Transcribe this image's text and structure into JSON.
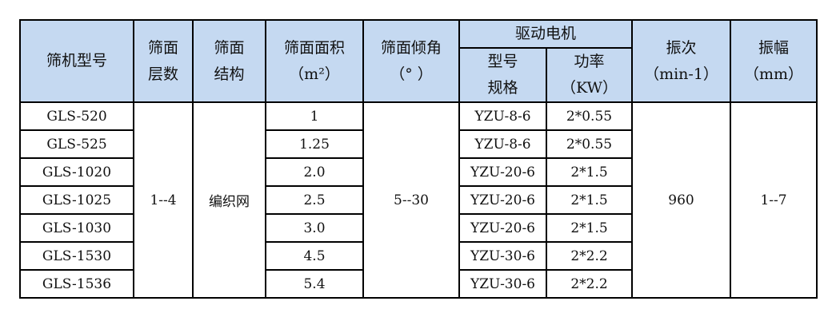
{
  "header": {
    "model": "筛机型号",
    "layers": [
      "筛面",
      "层数"
    ],
    "structure": [
      "筛面",
      "结构"
    ],
    "area": [
      "筛面面积",
      "（m²）"
    ],
    "angle": [
      "筛面倾角",
      "（° ）"
    ],
    "motor": "驱动电机",
    "motor_model": [
      "型号",
      "规格"
    ],
    "motor_power": [
      "功率",
      "（KW）"
    ],
    "frequency": [
      "振次",
      "（min-1）"
    ],
    "amplitude": [
      "振幅",
      "（mm）"
    ]
  },
  "shared": {
    "layers": "1--4",
    "structure": "编织网",
    "angle": "5--30",
    "frequency": "960",
    "amplitude": "1--7"
  },
  "rows": [
    {
      "model": "GLS-520",
      "area": "1",
      "motor_model": "YZU-8-6",
      "power": "2*0.55"
    },
    {
      "model": "GLS-525",
      "area": "1.25",
      "motor_model": "YZU-8-6",
      "power": "2*0.55"
    },
    {
      "model": "GLS-1020",
      "area": "2.0",
      "motor_model": "YZU-20-6",
      "power": "2*1.5"
    },
    {
      "model": "GLS-1025",
      "area": "2.5",
      "motor_model": "YZU-20-6",
      "power": "2*1.5"
    },
    {
      "model": "GLS-1030",
      "area": "3.0",
      "motor_model": "YZU-20-6",
      "power": "2*1.5"
    },
    {
      "model": "GLS-1530",
      "area": "4.5",
      "motor_model": "YZU-30-6",
      "power": "2*2.2"
    },
    {
      "model": "GLS-1536",
      "area": "5.4",
      "motor_model": "YZU-30-6",
      "power": "2*2.2"
    }
  ],
  "colors": {
    "header_bg": "#c5d9f1",
    "border": "#000000"
  }
}
